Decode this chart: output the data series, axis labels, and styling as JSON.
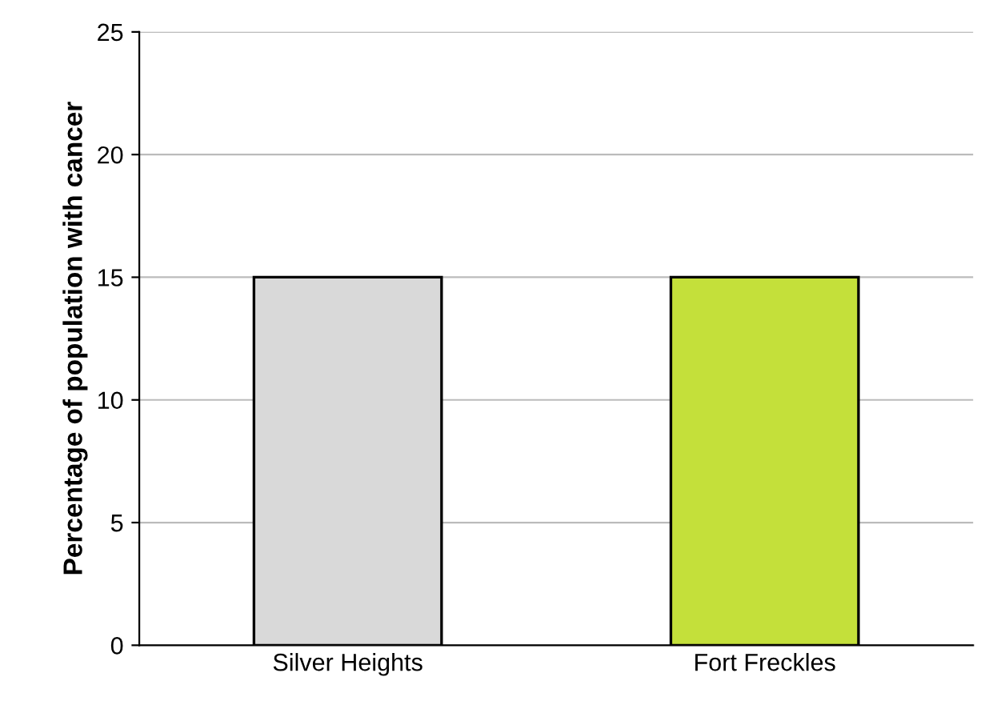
{
  "chart_data": {
    "type": "bar",
    "ylabel": "Percentage of population with cancer",
    "categories": [
      "Silver Heights",
      "Fort Freckles"
    ],
    "values": [
      15,
      15
    ],
    "colors": [
      "#d9d9d9",
      "#c4e03a"
    ],
    "ylim": [
      0,
      25
    ],
    "yticks": [
      0,
      5,
      10,
      15,
      20,
      25
    ],
    "grid": "y",
    "legend": false
  }
}
